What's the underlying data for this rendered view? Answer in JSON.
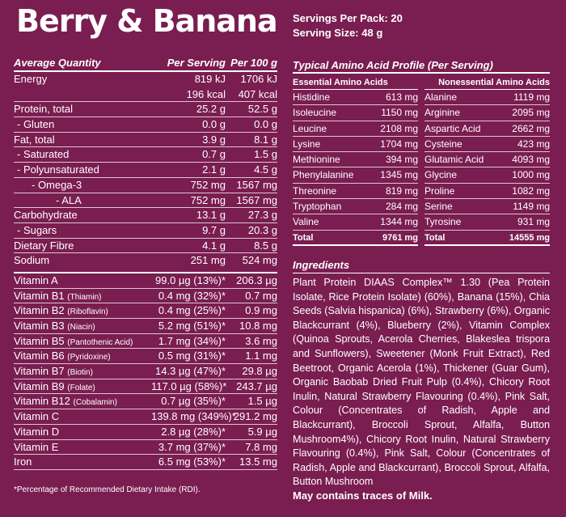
{
  "title": "Berry & Banana",
  "servings": {
    "per_pack": "Servings Per Pack: 20",
    "size": "Serving Size: 48 g"
  },
  "nutrition": {
    "headers": [
      "Average Quantity",
      "Per Serving",
      "Per 100 g"
    ],
    "rows": [
      {
        "name": "Energy",
        "serv": "819 kJ",
        "per100": "1706 kJ",
        "indent": 0,
        "border": false
      },
      {
        "name": "",
        "serv": "196 kcal",
        "per100": "407 kcal",
        "indent": 0,
        "border": true
      },
      {
        "name": "Protein, total",
        "serv": "25.2 g",
        "per100": "52.5 g",
        "indent": 0,
        "border": true
      },
      {
        "name": " - Gluten",
        "serv": "0.0 g",
        "per100": "0.0 g",
        "indent": 1,
        "border": true
      },
      {
        "name": "Fat, total",
        "serv": "3.9 g",
        "per100": "8.1 g",
        "indent": 0,
        "border": true
      },
      {
        "name": " - Saturated",
        "serv": "0.7 g",
        "per100": "1.5 g",
        "indent": 1,
        "border": true
      },
      {
        "name": " - Polyunsaturated",
        "serv": "2.1 g",
        "per100": "4.5 g",
        "indent": 1,
        "border": true
      },
      {
        "name": "- Omega-3",
        "serv": "752 mg",
        "per100": "1567 mg",
        "indent": 2,
        "border": true
      },
      {
        "name": "- ALA",
        "serv": "752 mg",
        "per100": "1567 mg",
        "indent": 3,
        "border": true
      },
      {
        "name": "Carbohydrate",
        "serv": "13.1 g",
        "per100": "27.3 g",
        "indent": 0,
        "border": true
      },
      {
        "name": " - Sugars",
        "serv": "9.7 g",
        "per100": "20.3 g",
        "indent": 1,
        "border": true
      },
      {
        "name": "Dietary Fibre",
        "serv": "4.1 g",
        "per100": "8.5 g",
        "indent": 0,
        "border": true
      },
      {
        "name": "Sodium",
        "serv": "251 mg",
        "per100": "524 mg",
        "indent": 0,
        "border": false
      }
    ],
    "vitamins": [
      {
        "name": "Vitamin A",
        "sub": "",
        "serv": "99.0 µg (13%)*",
        "per100": "206.3 µg"
      },
      {
        "name": "Vitamin B1",
        "sub": "(Thiamin)",
        "serv": "0.4 mg (32%)*",
        "per100": "0.7 mg"
      },
      {
        "name": "Vitamin B2",
        "sub": "(Riboflavin)",
        "serv": "0.4 mg (25%)*",
        "per100": "0.9 mg"
      },
      {
        "name": "Vitamin B3",
        "sub": "(Niacin)",
        "serv": "5.2 mg (51%)*",
        "per100": "10.8 mg"
      },
      {
        "name": "Vitamin B5",
        "sub": "(Pantothenic Acid)",
        "serv": "1.7 mg (34%)*",
        "per100": "3.6 mg"
      },
      {
        "name": "Vitamin B6",
        "sub": "(Pyridoxine)",
        "serv": "0.5 mg (31%)*",
        "per100": "1.1 mg"
      },
      {
        "name": "Vitamin B7",
        "sub": "(Biotin)",
        "serv": "14.3 µg (47%)*",
        "per100": "29.8 µg"
      },
      {
        "name": "Vitamin B9",
        "sub": "(Folate)",
        "serv": "117.0 µg (58%)*",
        "per100": "243.7 µg"
      },
      {
        "name": "Vitamin B12",
        "sub": "(Cobalamin)",
        "serv": "0.7 µg (35%)*",
        "per100": "1.5 µg"
      },
      {
        "name": "Vitamin C",
        "sub": "",
        "serv": "139.8 mg (349%)*",
        "per100": "291.2 mg"
      },
      {
        "name": "Vitamin D",
        "sub": "",
        "serv": "2.8 µg (28%)*",
        "per100": "5.9 µg"
      },
      {
        "name": "Vitamin E",
        "sub": "",
        "serv": "3.7 mg (37%)*",
        "per100": "7.8 mg"
      },
      {
        "name": "Iron",
        "sub": "",
        "serv": "6.5 mg (53%)*",
        "per100": "13.5 mg"
      }
    ],
    "footnote": "*Percentage of Recommended Dietary Intake (RDI)."
  },
  "amino": {
    "title": "Typical Amino Acid Profile (Per Serving)",
    "essential_header": "Essential Amino Acids",
    "nonessential_header": "Nonessential Amino Acids",
    "essential": [
      {
        "name": "Histidine",
        "value": "613 mg"
      },
      {
        "name": "Isoleucine",
        "value": "1150 mg"
      },
      {
        "name": "Leucine",
        "value": "2108 mg"
      },
      {
        "name": "Lysine",
        "value": "1704 mg"
      },
      {
        "name": "Methionine",
        "value": "394 mg"
      },
      {
        "name": "Phenylalanine",
        "value": "1345 mg"
      },
      {
        "name": "Threonine",
        "value": "819 mg"
      },
      {
        "name": "Tryptophan",
        "value": "284 mg"
      },
      {
        "name": "Valine",
        "value": "1344 mg"
      }
    ],
    "essential_total": {
      "name": "Total",
      "value": "9761 mg"
    },
    "nonessential": [
      {
        "name": "Alanine",
        "value": "1119 mg"
      },
      {
        "name": "Arginine",
        "value": "2095 mg"
      },
      {
        "name": "Aspartic Acid",
        "value": "2662 mg"
      },
      {
        "name": "Cysteine",
        "value": "423 mg"
      },
      {
        "name": "Glutamic Acid",
        "value": "4093 mg"
      },
      {
        "name": "Glycine",
        "value": "1000 mg"
      },
      {
        "name": "Proline",
        "value": "1082 mg"
      },
      {
        "name": "Serine",
        "value": "1149 mg"
      },
      {
        "name": "Tyrosine",
        "value": "931 mg"
      }
    ],
    "nonessential_total": {
      "name": "Total",
      "value": "14555 mg"
    }
  },
  "ingredients": {
    "title": "Ingredients",
    "text": "Plant Protein DIAAS Complex™ 1.30 (Pea Protein Isolate, Rice Protein Isolate) (60%), Banana (15%), Chia Seeds (Salvia hispanica) (6%), Strawberry (6%), Organic Blackcurrant (4%), Blueberry (2%), Vitamin Complex (Quinoa Sprouts, Acerola Cherries, Blakeslea trispora and Sunflowers), Sweetener (Monk Fruit Extract), Red Beetroot, Organic Acerola (1%), Thickener (Guar Gum), Organic Baobab Dried Fruit Pulp (0.4%), Chicory Root Inulin, Natural Strawberry Flavouring (0.4%), Pink Salt, Colour (Concentrates of Radish, Apple and Blackcurrant), Broccoli Sprout, Alfalfa, Button Mushroom4%), Chicory Root Inulin, Natural Strawberry Flavouring (0.4%), Pink Salt, Colour (Concentrates of Radish, Apple and Blackcurrant), Broccoli Sprout, Alfalfa, Button Mushroom",
    "allergen": "May contains traces of Milk."
  },
  "colors": {
    "background": "#7a1d50",
    "text": "#ffffff"
  }
}
